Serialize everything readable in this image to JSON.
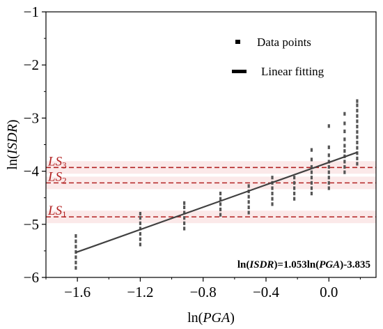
{
  "chart_data": {
    "type": "scatter",
    "xlabel": {
      "prefix": "ln(",
      "italic": "PGA",
      "suffix": ")"
    },
    "ylabel": {
      "prefix": "ln(",
      "italic": "ISDR",
      "suffix": ")"
    },
    "xlim": [
      -1.8,
      0.3
    ],
    "ylim": [
      -6,
      -1
    ],
    "xticks": [
      -1.6,
      -1.2,
      -0.8,
      -0.4,
      0.0
    ],
    "xtick_labels": [
      "−1.6",
      "−1.2",
      "−0.8",
      "−0.4",
      "0.0"
    ],
    "yticks": [
      -6,
      -5,
      -4,
      -3,
      -2,
      -1
    ],
    "ytick_labels": [
      "−6",
      "−5",
      "−4",
      "−3",
      "−2",
      "−1"
    ],
    "grid": false,
    "legend": {
      "position": "top-right",
      "entries": [
        {
          "label": "Data points",
          "marker": "square"
        },
        {
          "label": "Linear fitting",
          "marker": "line"
        }
      ]
    },
    "series": [
      {
        "name": "Data points",
        "color": "#555555",
        "points": [
          {
            "x": -1.61,
            "y": -5.82
          },
          {
            "x": -1.61,
            "y": -5.72
          },
          {
            "x": -1.61,
            "y": -5.62
          },
          {
            "x": -1.61,
            "y": -5.52
          },
          {
            "x": -1.61,
            "y": -5.42
          },
          {
            "x": -1.61,
            "y": -5.32
          },
          {
            "x": -1.61,
            "y": -5.22
          },
          {
            "x": -1.2,
            "y": -5.38
          },
          {
            "x": -1.2,
            "y": -5.28
          },
          {
            "x": -1.2,
            "y": -5.18
          },
          {
            "x": -1.2,
            "y": -5.08
          },
          {
            "x": -1.2,
            "y": -4.98
          },
          {
            "x": -1.2,
            "y": -4.88
          },
          {
            "x": -1.2,
            "y": -4.8
          },
          {
            "x": -0.92,
            "y": -5.08
          },
          {
            "x": -0.92,
            "y": -4.98
          },
          {
            "x": -0.92,
            "y": -4.88
          },
          {
            "x": -0.92,
            "y": -4.78
          },
          {
            "x": -0.92,
            "y": -4.68
          },
          {
            "x": -0.92,
            "y": -4.6
          },
          {
            "x": -0.69,
            "y": -4.82
          },
          {
            "x": -0.69,
            "y": -4.72
          },
          {
            "x": -0.69,
            "y": -4.62
          },
          {
            "x": -0.69,
            "y": -4.52
          },
          {
            "x": -0.69,
            "y": -4.42
          },
          {
            "x": -0.51,
            "y": -4.78
          },
          {
            "x": -0.51,
            "y": -4.68
          },
          {
            "x": -0.51,
            "y": -4.58
          },
          {
            "x": -0.51,
            "y": -4.48
          },
          {
            "x": -0.51,
            "y": -4.38
          },
          {
            "x": -0.51,
            "y": -4.28
          },
          {
            "x": -0.36,
            "y": -4.62
          },
          {
            "x": -0.36,
            "y": -4.52
          },
          {
            "x": -0.36,
            "y": -4.42
          },
          {
            "x": -0.36,
            "y": -4.32
          },
          {
            "x": -0.36,
            "y": -4.22
          },
          {
            "x": -0.36,
            "y": -4.12
          },
          {
            "x": -0.22,
            "y": -4.52
          },
          {
            "x": -0.22,
            "y": -4.42
          },
          {
            "x": -0.22,
            "y": -4.32
          },
          {
            "x": -0.22,
            "y": -4.22
          },
          {
            "x": -0.22,
            "y": -4.12
          },
          {
            "x": -0.11,
            "y": -4.42
          },
          {
            "x": -0.11,
            "y": -4.32
          },
          {
            "x": -0.11,
            "y": -4.22
          },
          {
            "x": -0.11,
            "y": -4.12
          },
          {
            "x": -0.11,
            "y": -4.02
          },
          {
            "x": -0.11,
            "y": -3.92
          },
          {
            "x": -0.11,
            "y": -3.78
          },
          {
            "x": -0.11,
            "y": -3.6
          },
          {
            "x": 0.0,
            "y": -4.32
          },
          {
            "x": 0.0,
            "y": -4.22
          },
          {
            "x": 0.0,
            "y": -4.12
          },
          {
            "x": 0.0,
            "y": -4.02
          },
          {
            "x": 0.0,
            "y": -3.92
          },
          {
            "x": 0.0,
            "y": -3.82
          },
          {
            "x": 0.0,
            "y": -3.7
          },
          {
            "x": 0.0,
            "y": -3.55
          },
          {
            "x": 0.0,
            "y": -3.15
          },
          {
            "x": 0.1,
            "y": -4.02
          },
          {
            "x": 0.1,
            "y": -3.92
          },
          {
            "x": 0.1,
            "y": -3.82
          },
          {
            "x": 0.1,
            "y": -3.72
          },
          {
            "x": 0.1,
            "y": -3.62
          },
          {
            "x": 0.1,
            "y": -3.52
          },
          {
            "x": 0.1,
            "y": -3.4
          },
          {
            "x": 0.1,
            "y": -3.25
          },
          {
            "x": 0.1,
            "y": -3.1
          },
          {
            "x": 0.1,
            "y": -2.92
          },
          {
            "x": 0.18,
            "y": -3.86
          },
          {
            "x": 0.18,
            "y": -3.76
          },
          {
            "x": 0.18,
            "y": -3.66
          },
          {
            "x": 0.18,
            "y": -3.56
          },
          {
            "x": 0.18,
            "y": -3.46
          },
          {
            "x": 0.18,
            "y": -3.36
          },
          {
            "x": 0.18,
            "y": -3.26
          },
          {
            "x": 0.18,
            "y": -3.16
          },
          {
            "x": 0.18,
            "y": -3.06
          },
          {
            "x": 0.18,
            "y": -2.96
          },
          {
            "x": 0.18,
            "y": -2.86
          },
          {
            "x": 0.18,
            "y": -2.76
          },
          {
            "x": 0.18,
            "y": -2.68
          }
        ]
      },
      {
        "name": "Linear fitting",
        "color": "#404040",
        "line": {
          "slope": 1.053,
          "intercept": -3.835,
          "x_from": -1.61,
          "x_to": 0.18
        }
      }
    ],
    "limit_states": [
      {
        "label": "LS",
        "sub": "3",
        "y": -3.93
      },
      {
        "label": "LS",
        "sub": "2",
        "y": -4.22
      },
      {
        "label": "LS",
        "sub": "1",
        "y": -4.86
      }
    ],
    "limit_state_color": "#b22222",
    "equation": {
      "parts": [
        {
          "text": "ln(",
          "italic": false
        },
        {
          "text": "ISDR",
          "italic": true
        },
        {
          "text": ")=1.053ln(",
          "italic": false
        },
        {
          "text": "PGA",
          "italic": true
        },
        {
          "text": ")-3.835",
          "italic": false
        }
      ]
    }
  }
}
